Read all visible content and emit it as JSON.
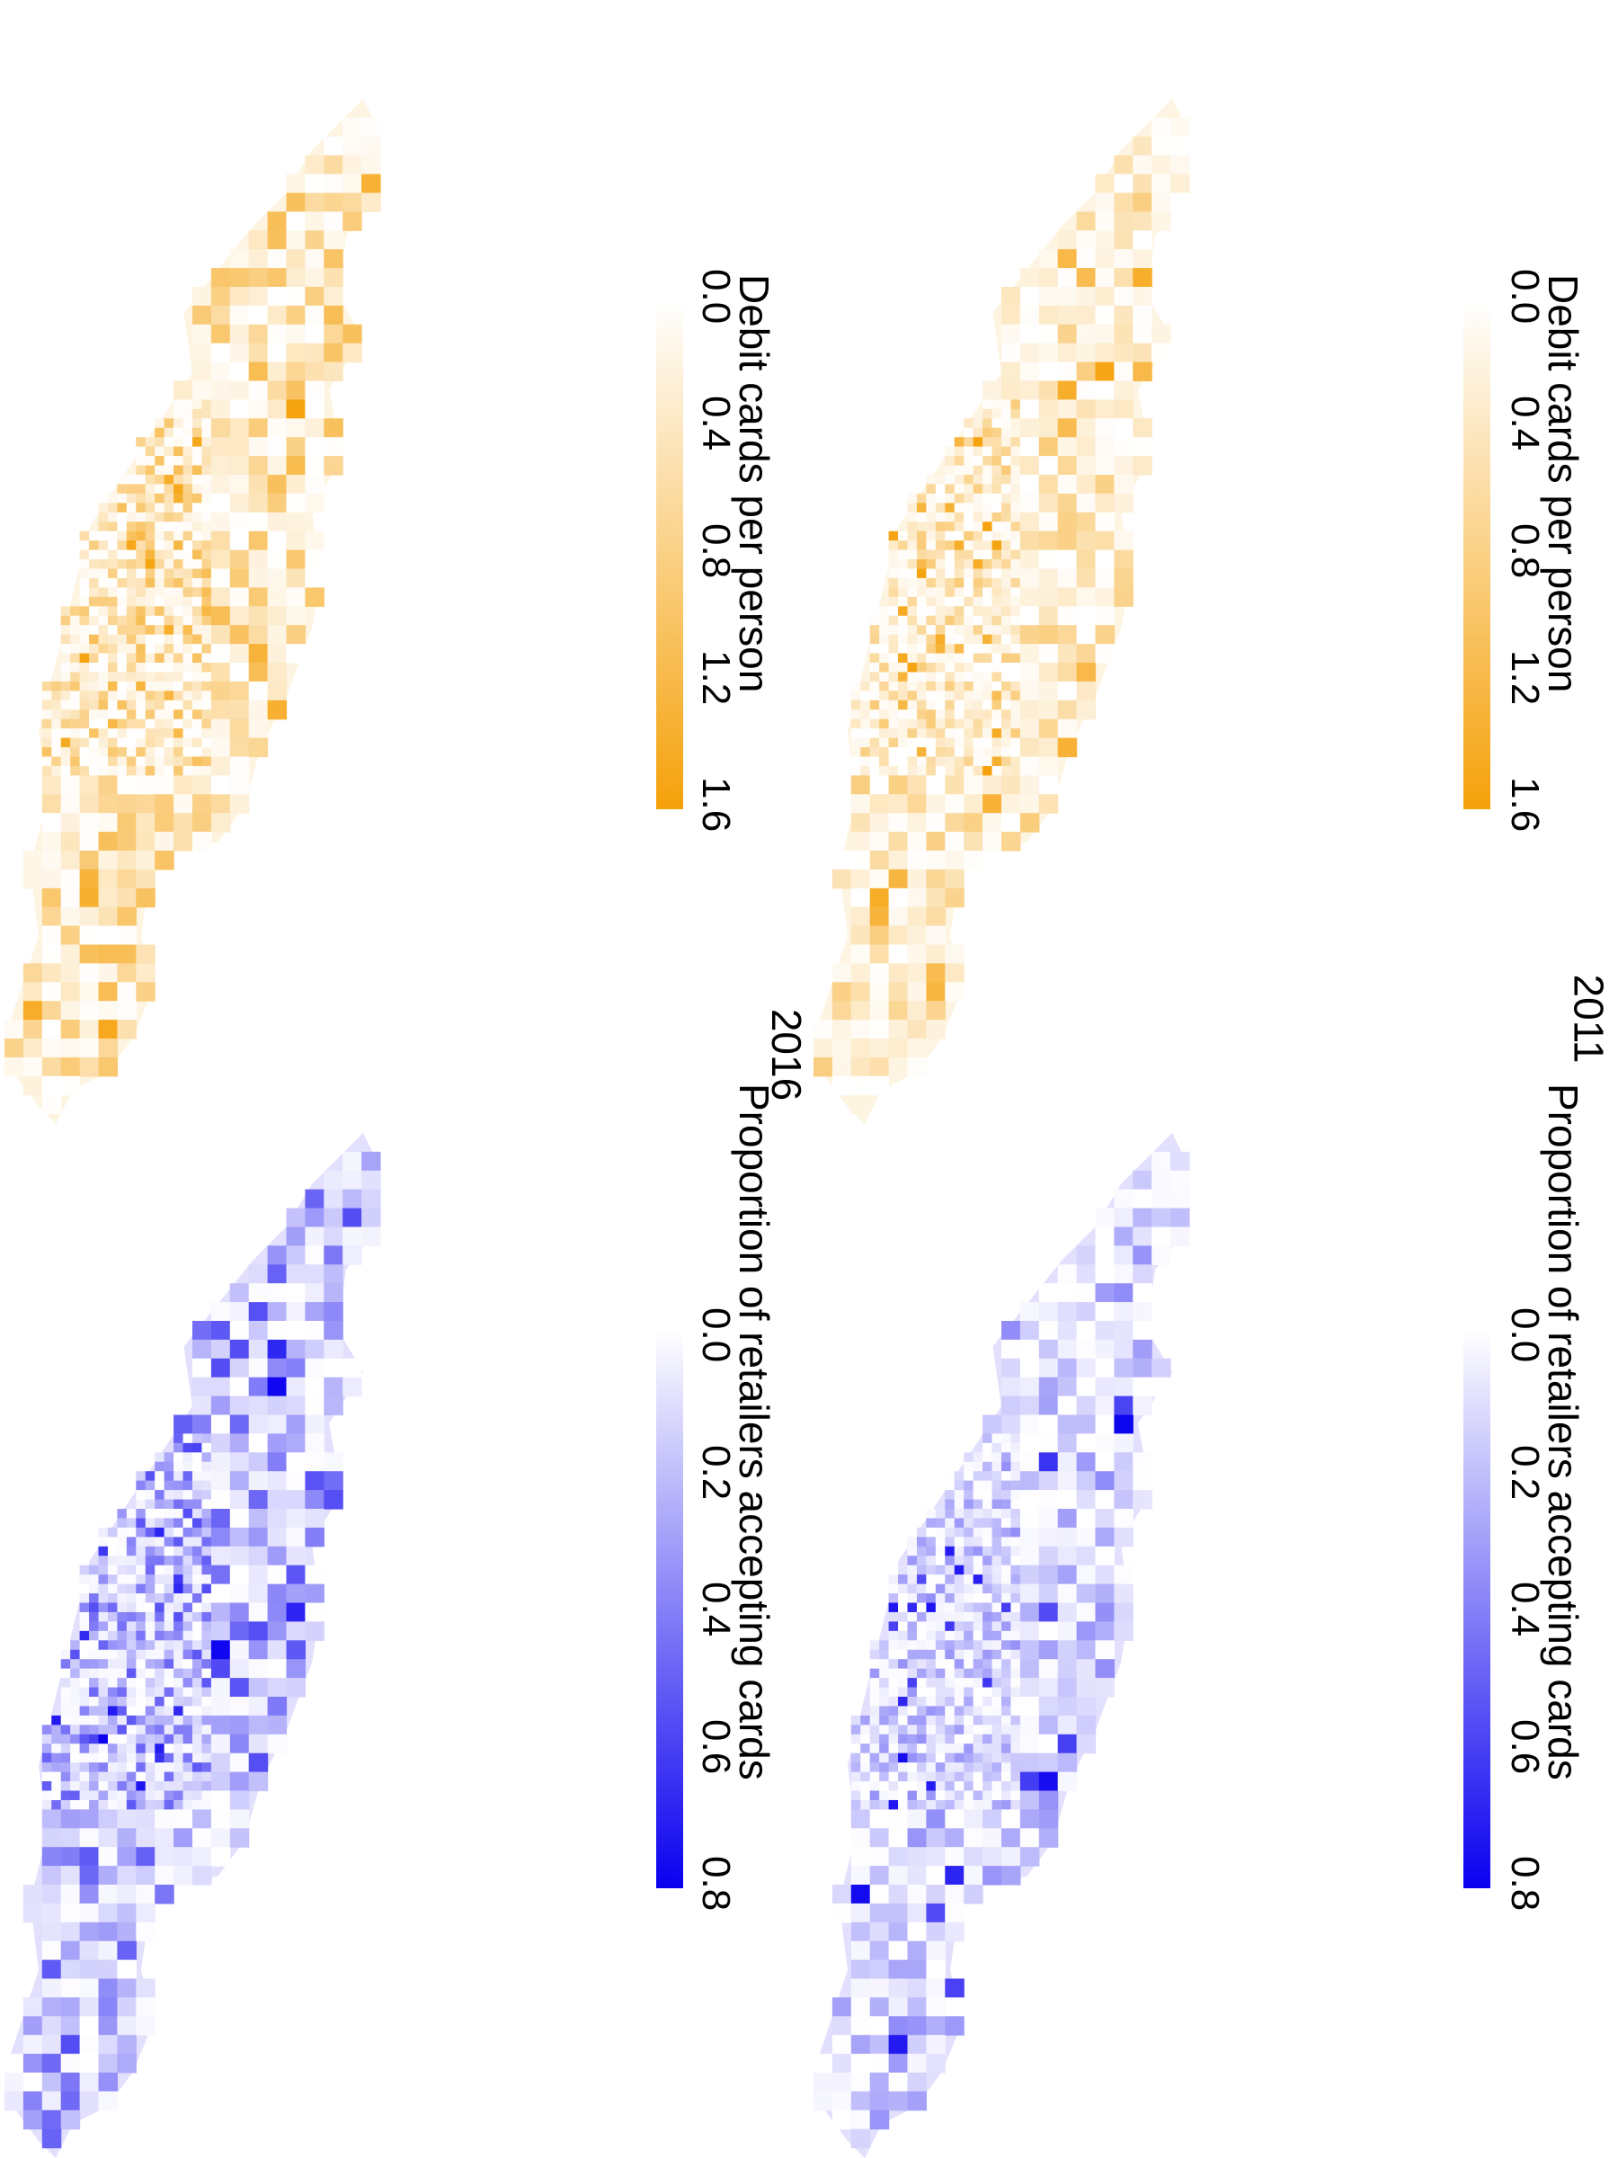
{
  "panels": [
    {
      "year": "2011",
      "maps": [
        {
          "legend_title": "Debit cards per person",
          "ticks": [
            "0.0",
            "0.4",
            "0.8",
            "1.2",
            "1.6"
          ],
          "color_low": "#ffffff",
          "color_high": "#f5a10a"
        },
        {
          "legend_title": "Proportion of retailers accepting cards",
          "ticks": [
            "0.0",
            "0.2",
            "0.4",
            "0.6",
            "0.8"
          ],
          "color_low": "#ffffff",
          "color_high": "#0a00ef"
        }
      ]
    },
    {
      "year": "2016",
      "maps": [
        {
          "legend_title": "Debit cards per person",
          "ticks": [
            "0.0",
            "0.4",
            "0.8",
            "1.2",
            "1.6"
          ],
          "color_low": "#ffffff",
          "color_high": "#f5a10a"
        },
        {
          "legend_title": "Proportion of retailers accepting cards",
          "ticks": [
            "0.0",
            "0.2",
            "0.4",
            "0.6",
            "0.8"
          ],
          "color_low": "#ffffff",
          "color_high": "#0a00ef"
        }
      ]
    }
  ]
}
